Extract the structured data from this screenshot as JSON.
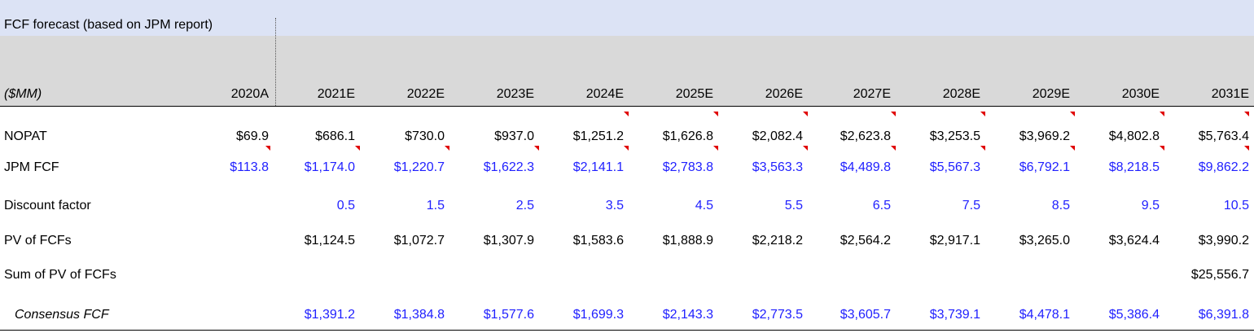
{
  "title": "FCF forecast (based on JPM report)",
  "units_label": "($MM)",
  "years": [
    "2020A",
    "2021E",
    "2022E",
    "2023E",
    "2024E",
    "2025E",
    "2026E",
    "2027E",
    "2028E",
    "2029E",
    "2030E",
    "2031E"
  ],
  "rows": {
    "nopat": {
      "label": "NOPAT",
      "values": [
        "$69.9",
        "$686.1",
        "$730.0",
        "$937.0",
        "$1,251.2",
        "$1,626.8",
        "$2,082.4",
        "$2,623.8",
        "$3,253.5",
        "$3,969.2",
        "$4,802.8",
        "$5,763.4"
      ]
    },
    "jpm_fcf": {
      "label": "JPM FCF",
      "values": [
        "$113.8",
        "$1,174.0",
        "$1,220.7",
        "$1,622.3",
        "$2,141.1",
        "$2,783.8",
        "$3,563.3",
        "$4,489.8",
        "$5,567.3",
        "$6,792.1",
        "$8,218.5",
        "$9,862.2"
      ]
    },
    "discount_factor": {
      "label": "Discount factor",
      "values": [
        "",
        "0.5",
        "1.5",
        "2.5",
        "3.5",
        "4.5",
        "5.5",
        "6.5",
        "7.5",
        "8.5",
        "9.5",
        "10.5"
      ]
    },
    "pv_fcfs": {
      "label": "PV of FCFs",
      "values": [
        "",
        "$1,124.5",
        "$1,072.7",
        "$1,307.9",
        "$1,583.6",
        "$1,888.9",
        "$2,218.2",
        "$2,564.2",
        "$2,917.1",
        "$3,265.0",
        "$3,624.4",
        "$3,990.2"
      ]
    },
    "sum_pv": {
      "label": "Sum of PV of FCFs",
      "values": [
        "",
        "",
        "",
        "",
        "",
        "",
        "",
        "",
        "",
        "",
        "",
        "$25,556.7"
      ]
    },
    "consensus_fcf": {
      "label": "Consensus FCF",
      "values": [
        "",
        "$1,391.2",
        "$1,384.8",
        "$1,577.6",
        "$1,699.3",
        "$2,143.3",
        "$2,773.5",
        "$3,605.7",
        "$3,739.1",
        "$4,478.1",
        "$5,386.4",
        "$6,391.8"
      ]
    }
  },
  "colors": {
    "input_blue": "#1f1fff",
    "comment_red": "#e00000",
    "title_band": "#dce3f5",
    "header_band": "#d9d9d9"
  }
}
